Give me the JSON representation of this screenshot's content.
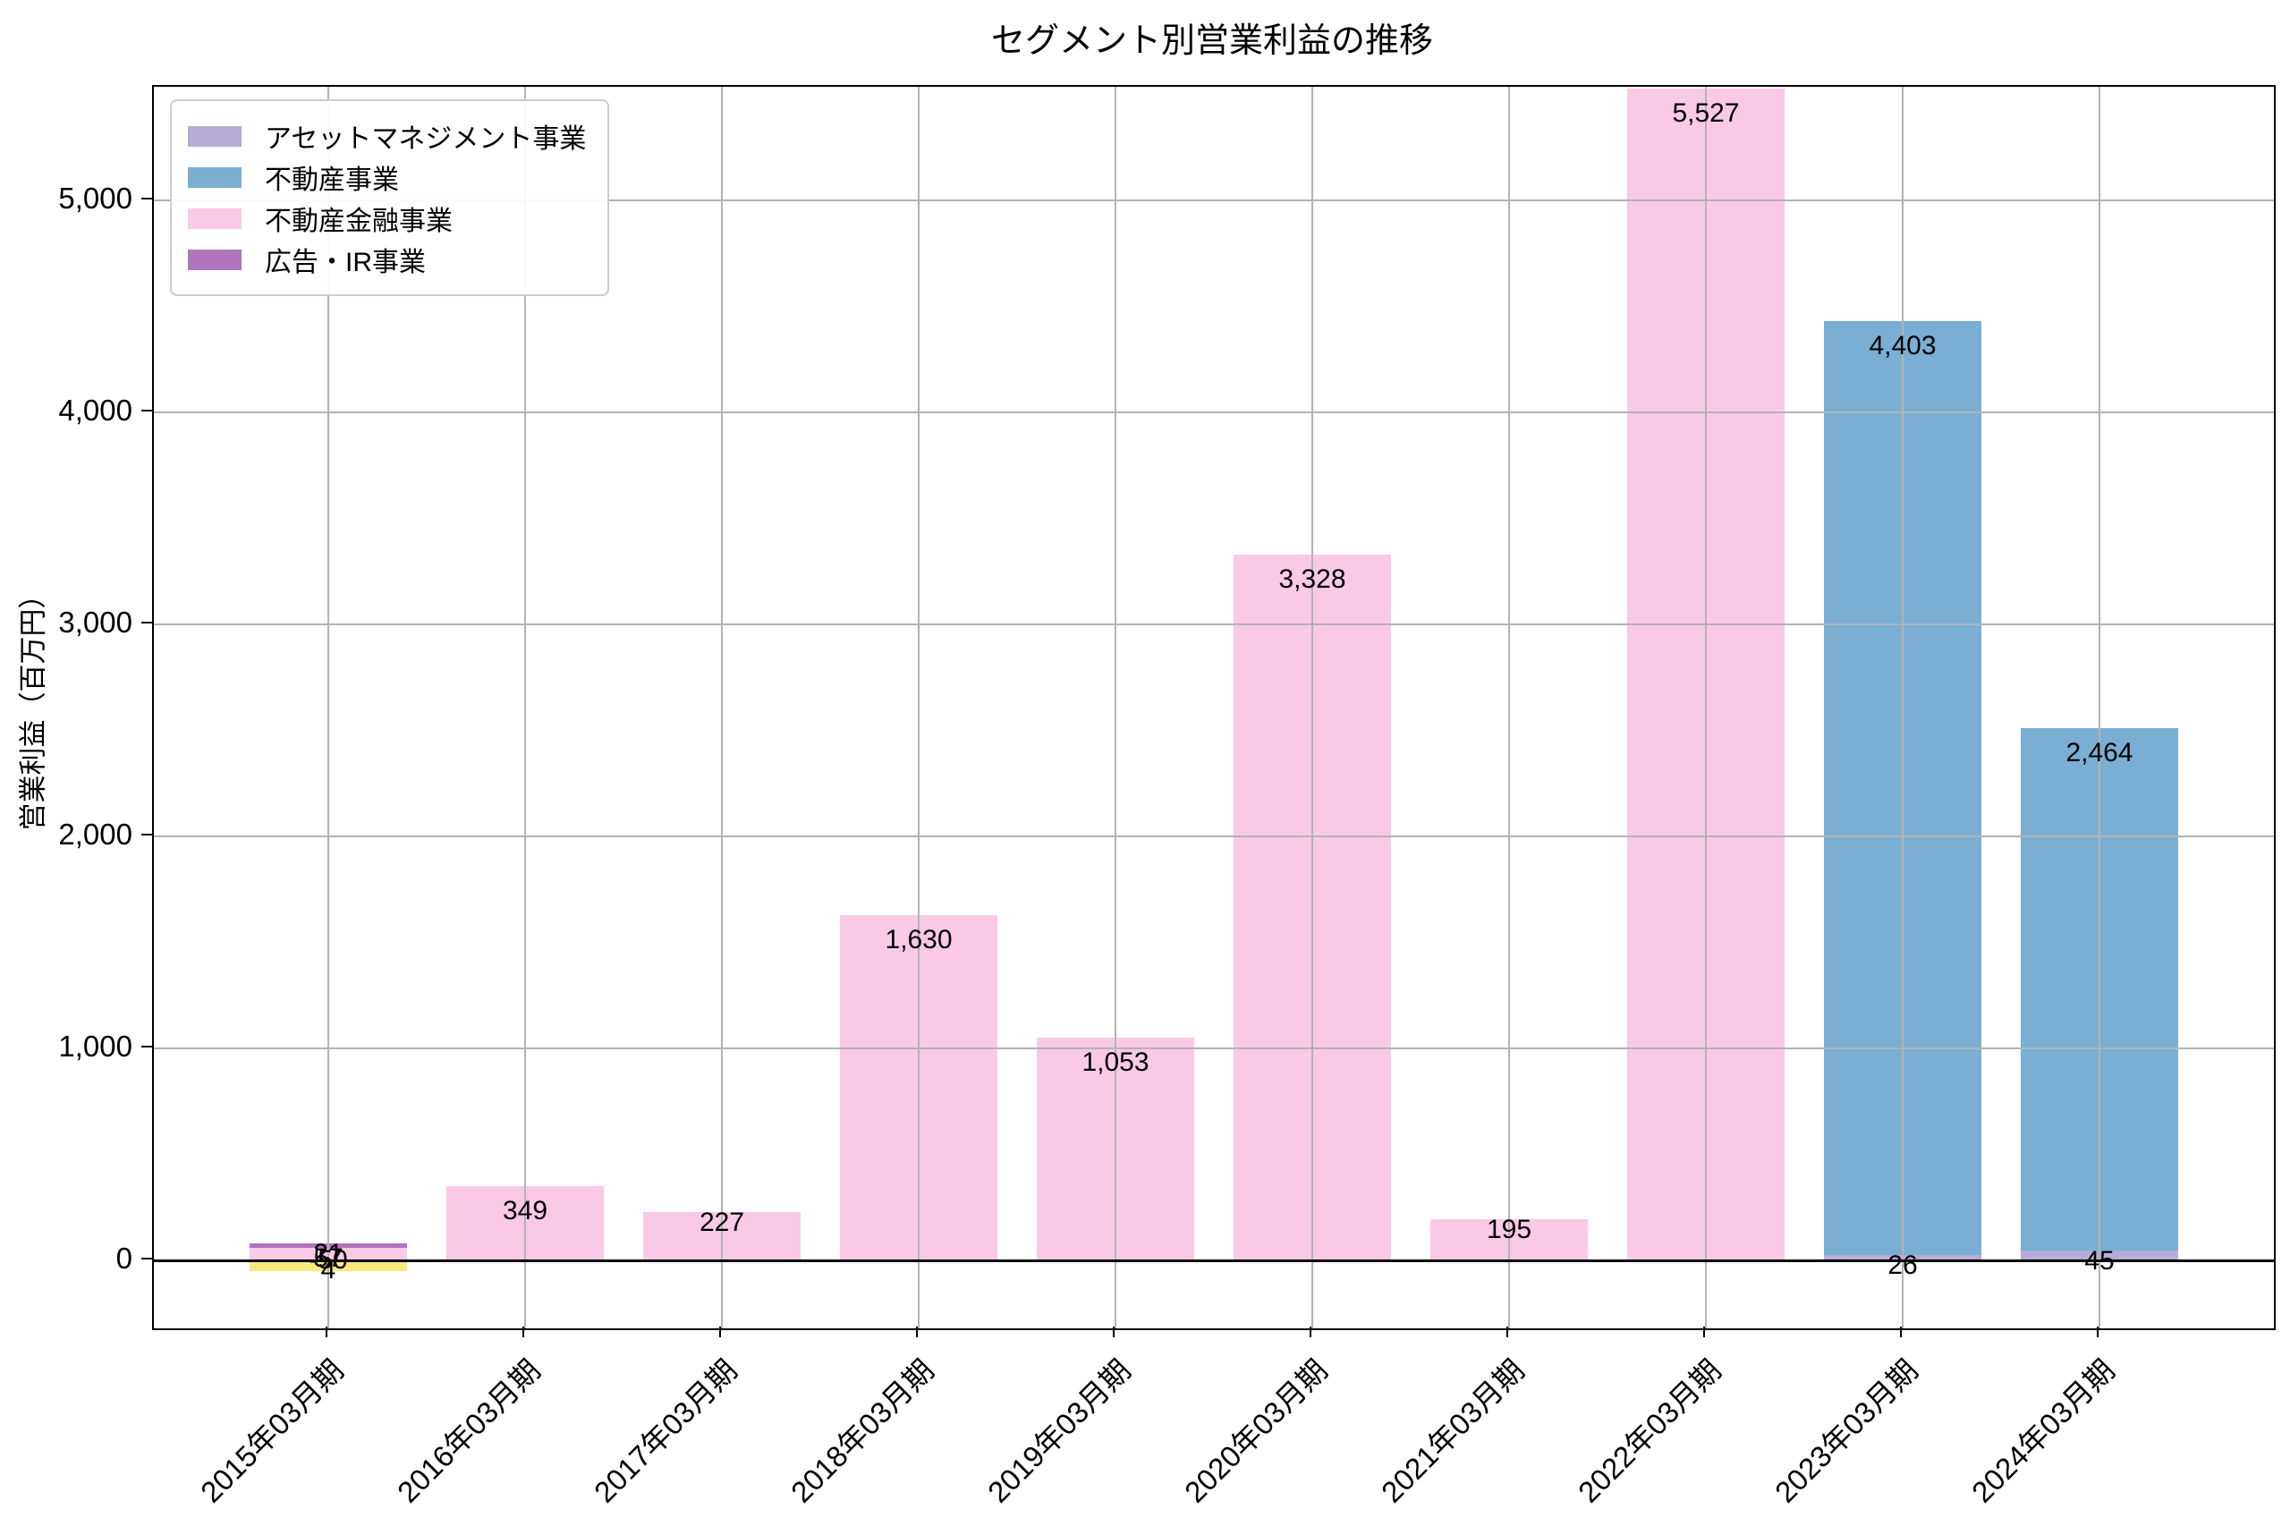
{
  "chart_data": {
    "type": "bar",
    "stacked": true,
    "title": "セグメント別営業利益の推移",
    "ylabel": "営業利益（百万円）",
    "categories": [
      "2015年03月期",
      "2016年03月期",
      "2017年03月期",
      "2018年03月期",
      "2019年03月期",
      "2020年03月期",
      "2021年03月期",
      "2022年03月期",
      "2023年03月期",
      "2024年03月期"
    ],
    "series": [
      {
        "name": "アセットマネジメント事業",
        "color": "#b7abd7",
        "in_legend": true,
        "values": [
          4,
          null,
          null,
          null,
          null,
          null,
          null,
          null,
          26,
          45
        ]
      },
      {
        "name": "不動産事業",
        "color": "#7aaed3",
        "in_legend": true,
        "values": [
          null,
          null,
          null,
          null,
          null,
          null,
          null,
          null,
          4403,
          2464
        ]
      },
      {
        "name": "不動産金融事業",
        "color": "#f9c9e6",
        "in_legend": true,
        "values": [
          57,
          349,
          227,
          1630,
          1053,
          3328,
          195,
          5527,
          null,
          null
        ]
      },
      {
        "name": "広告・IR事業",
        "color": "#b073bd",
        "in_legend": true,
        "values": [
          21,
          null,
          null,
          null,
          null,
          null,
          null,
          null,
          null,
          null
        ]
      },
      {
        "name": "",
        "color": "#fbe87e",
        "in_legend": false,
        "values": [
          -50,
          null,
          null,
          null,
          null,
          null,
          null,
          null,
          null,
          null
        ]
      }
    ],
    "yticks": [
      0,
      1000,
      2000,
      3000,
      4000,
      5000
    ],
    "ylim": [
      -320,
      5535
    ],
    "grid": true,
    "legend_position": "upper-left",
    "bar_value_labels": true,
    "background_color": "#ffffff",
    "grid_color": "#b3b3b3"
  }
}
